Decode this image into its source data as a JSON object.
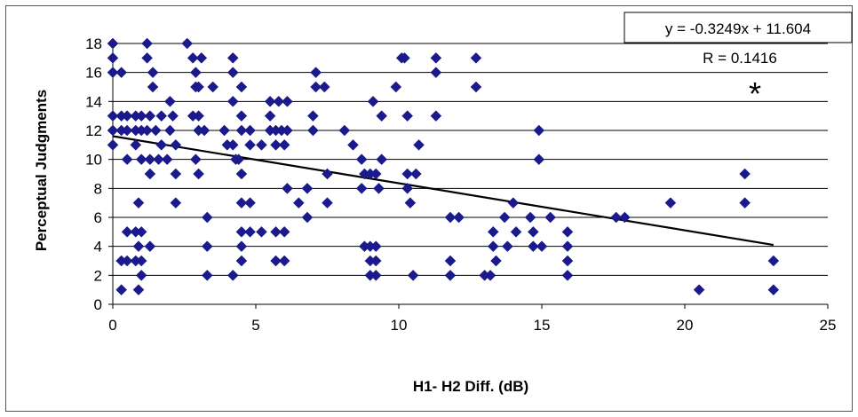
{
  "chart_data": {
    "type": "scatter",
    "title": "",
    "xlabel": "H1- H2 Diff. (dB)",
    "ylabel": "Perceptual Judgments",
    "xlim": [
      0,
      25
    ],
    "ylim": [
      0,
      18
    ],
    "x_ticks": [
      "0",
      "5",
      "10",
      "15",
      "20",
      "25"
    ],
    "y_ticks": [
      "0",
      "2",
      "4",
      "6",
      "8",
      "10",
      "12",
      "14",
      "16",
      "18"
    ],
    "grid": "horizontal",
    "marker_color": "#1a1a8c",
    "line_color": "#000000",
    "annotations": {
      "equation": "y = -0.3249x + 11.604",
      "r_value": "R = 0.1416",
      "significance": "*"
    },
    "trendline": {
      "slope": -0.3249,
      "intercept": 11.604,
      "x_range": [
        0,
        23.1
      ]
    },
    "points": [
      [
        0.0,
        18
      ],
      [
        0.0,
        17
      ],
      [
        0.0,
        16
      ],
      [
        0.3,
        16
      ],
      [
        0.0,
        13
      ],
      [
        0.0,
        12
      ],
      [
        0.0,
        11
      ],
      [
        0.3,
        13
      ],
      [
        0.5,
        13
      ],
      [
        0.8,
        13
      ],
      [
        1.0,
        13
      ],
      [
        1.3,
        13
      ],
      [
        0.3,
        12
      ],
      [
        0.5,
        12
      ],
      [
        0.8,
        12
      ],
      [
        1.0,
        12
      ],
      [
        1.2,
        12
      ],
      [
        1.5,
        12
      ],
      [
        0.5,
        10
      ],
      [
        0.8,
        11
      ],
      [
        1.0,
        10
      ],
      [
        1.3,
        10
      ],
      [
        0.3,
        3
      ],
      [
        0.5,
        3
      ],
      [
        0.8,
        3
      ],
      [
        1.0,
        3
      ],
      [
        0.3,
        1
      ],
      [
        0.9,
        1
      ],
      [
        0.5,
        5
      ],
      [
        0.8,
        5
      ],
      [
        1.0,
        5
      ],
      [
        0.9,
        7
      ],
      [
        0.9,
        4
      ],
      [
        1.0,
        2
      ],
      [
        1.3,
        4
      ],
      [
        1.2,
        18
      ],
      [
        1.2,
        17
      ],
      [
        1.4,
        16
      ],
      [
        1.4,
        15
      ],
      [
        1.7,
        13
      ],
      [
        1.7,
        11
      ],
      [
        1.6,
        10
      ],
      [
        1.9,
        10
      ],
      [
        2.0,
        12
      ],
      [
        2.0,
        14
      ],
      [
        2.1,
        13
      ],
      [
        2.2,
        11
      ],
      [
        2.2,
        9
      ],
      [
        2.2,
        7
      ],
      [
        1.3,
        9
      ],
      [
        2.6,
        18
      ],
      [
        2.8,
        17
      ],
      [
        2.9,
        16
      ],
      [
        2.9,
        15
      ],
      [
        3.0,
        15
      ],
      [
        2.8,
        13
      ],
      [
        3.0,
        13
      ],
      [
        3.0,
        12
      ],
      [
        3.2,
        12
      ],
      [
        2.9,
        10
      ],
      [
        3.0,
        9
      ],
      [
        3.1,
        17
      ],
      [
        3.3,
        6
      ],
      [
        3.3,
        4
      ],
      [
        3.3,
        2
      ],
      [
        3.5,
        15
      ],
      [
        3.9,
        12
      ],
      [
        4.0,
        11
      ],
      [
        4.2,
        17
      ],
      [
        4.2,
        16
      ],
      [
        4.2,
        14
      ],
      [
        4.2,
        11
      ],
      [
        4.3,
        10
      ],
      [
        4.4,
        10
      ],
      [
        4.2,
        2
      ],
      [
        4.5,
        15
      ],
      [
        4.5,
        13
      ],
      [
        4.5,
        12
      ],
      [
        4.5,
        9
      ],
      [
        4.5,
        7
      ],
      [
        4.5,
        5
      ],
      [
        4.5,
        4
      ],
      [
        4.5,
        3
      ],
      [
        4.8,
        12
      ],
      [
        4.8,
        11
      ],
      [
        4.8,
        7
      ],
      [
        4.8,
        5
      ],
      [
        5.2,
        11
      ],
      [
        5.2,
        5
      ],
      [
        5.5,
        14
      ],
      [
        5.5,
        13
      ],
      [
        5.5,
        12
      ],
      [
        5.7,
        12
      ],
      [
        5.7,
        11
      ],
      [
        5.8,
        14
      ],
      [
        5.7,
        5
      ],
      [
        5.7,
        3
      ],
      [
        5.9,
        12
      ],
      [
        6.0,
        11
      ],
      [
        6.0,
        5
      ],
      [
        6.0,
        3
      ],
      [
        6.1,
        14
      ],
      [
        6.1,
        12
      ],
      [
        6.1,
        8
      ],
      [
        6.5,
        7
      ],
      [
        6.8,
        8
      ],
      [
        6.8,
        6
      ],
      [
        7.0,
        13
      ],
      [
        7.0,
        12
      ],
      [
        7.1,
        16
      ],
      [
        7.1,
        15
      ],
      [
        7.4,
        15
      ],
      [
        7.5,
        9
      ],
      [
        7.5,
        7
      ],
      [
        8.1,
        12
      ],
      [
        8.4,
        11
      ],
      [
        8.7,
        10
      ],
      [
        8.8,
        9
      ],
      [
        8.7,
        8
      ],
      [
        9.0,
        9
      ],
      [
        9.2,
        9
      ],
      [
        9.3,
        8
      ],
      [
        9.1,
        14
      ],
      [
        9.4,
        13
      ],
      [
        9.4,
        10
      ],
      [
        8.8,
        4
      ],
      [
        9.0,
        4
      ],
      [
        9.2,
        4
      ],
      [
        9.0,
        3
      ],
      [
        9.2,
        3
      ],
      [
        9.0,
        2
      ],
      [
        9.2,
        2
      ],
      [
        9.9,
        15
      ],
      [
        10.1,
        17
      ],
      [
        10.2,
        17
      ],
      [
        10.3,
        13
      ],
      [
        10.3,
        9
      ],
      [
        10.3,
        8
      ],
      [
        10.4,
        7
      ],
      [
        10.5,
        2
      ],
      [
        10.6,
        9
      ],
      [
        10.7,
        11
      ],
      [
        11.3,
        17
      ],
      [
        11.3,
        16
      ],
      [
        11.3,
        13
      ],
      [
        11.8,
        6
      ],
      [
        11.8,
        3
      ],
      [
        11.8,
        2
      ],
      [
        12.1,
        6
      ],
      [
        12.7,
        17
      ],
      [
        12.7,
        15
      ],
      [
        13.0,
        2
      ],
      [
        13.2,
        2
      ],
      [
        13.3,
        5
      ],
      [
        13.3,
        4
      ],
      [
        13.4,
        3
      ],
      [
        13.7,
        6
      ],
      [
        13.8,
        4
      ],
      [
        14.0,
        7
      ],
      [
        14.1,
        5
      ],
      [
        14.6,
        6
      ],
      [
        14.7,
        5
      ],
      [
        14.7,
        4
      ],
      [
        14.9,
        12
      ],
      [
        14.9,
        10
      ],
      [
        15.0,
        4
      ],
      [
        15.3,
        6
      ],
      [
        15.9,
        5
      ],
      [
        15.9,
        4
      ],
      [
        15.9,
        3
      ],
      [
        15.9,
        2
      ],
      [
        17.6,
        6
      ],
      [
        17.9,
        6
      ],
      [
        19.5,
        7
      ],
      [
        20.5,
        1
      ],
      [
        22.1,
        9
      ],
      [
        22.1,
        7
      ],
      [
        23.1,
        3
      ],
      [
        23.1,
        1
      ]
    ]
  }
}
